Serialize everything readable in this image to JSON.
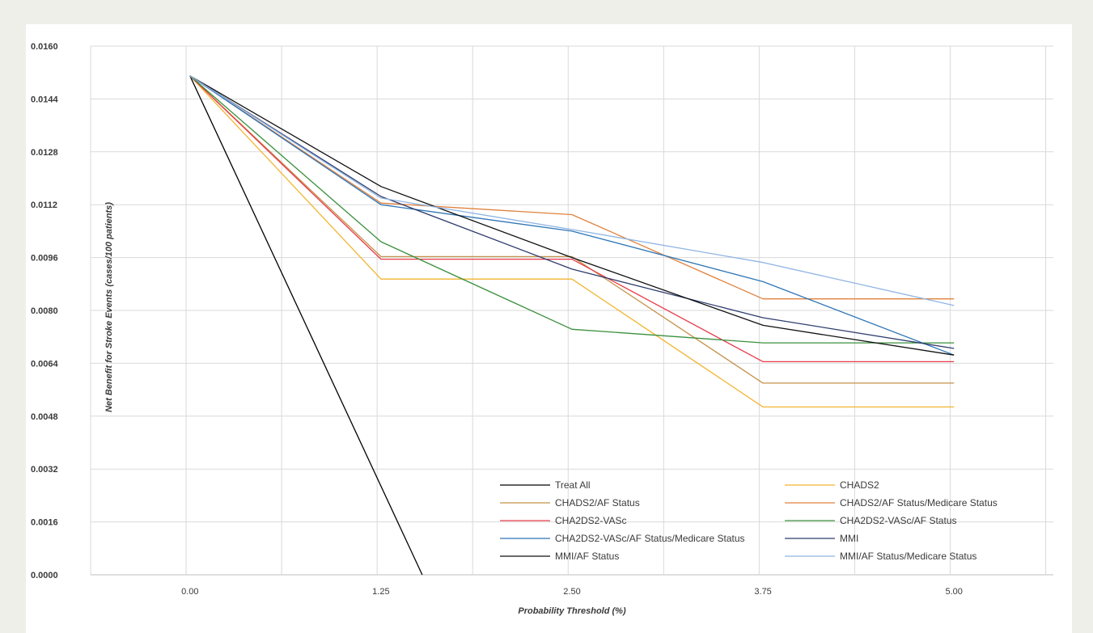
{
  "chart_data": {
    "type": "line",
    "title": "",
    "xlabel": "Probability Threshold (%)",
    "ylabel": "Net Benefit for Stroke Events (cases/100 patients)",
    "x": [
      0,
      1.25,
      2.5,
      3.75,
      5
    ],
    "x_tick_labels": [
      "0.00",
      "1.25",
      "2.50",
      "3.75",
      "5.00"
    ],
    "y_tick_labels": [
      "0.0000",
      "0.0016",
      "0.0032",
      "0.0048",
      "0.0064",
      "0.0080",
      "0.0096",
      "0.0112",
      "0.0128",
      "0.0144",
      "0.0160"
    ],
    "xlim": [
      -0.65,
      5.65
    ],
    "ylim": [
      0,
      0.016
    ],
    "grid": true,
    "legend_position": "bottom-right-inside",
    "series": [
      {
        "name": "Treat All",
        "color": "#000000",
        "x": [
          0,
          1.52
        ],
        "values": [
          0.0151,
          0
        ]
      },
      {
        "name": "CHADS2",
        "color": "#f2b531",
        "values": [
          0.0151,
          0.00895,
          0.00895,
          0.00508,
          0.00508
        ]
      },
      {
        "name": "CHADS2/AF Status",
        "color": "#c4924a",
        "values": [
          0.0151,
          0.00963,
          0.00963,
          0.0058,
          0.0058
        ]
      },
      {
        "name": "CHADS2/AF Status/Medicare Status",
        "color": "#e0813c",
        "values": [
          0.0151,
          0.01125,
          0.0109,
          0.00835,
          0.00835
        ]
      },
      {
        "name": "CHA2DS2-VASc",
        "color": "#e83a49",
        "values": [
          0.0151,
          0.00955,
          0.00955,
          0.00645,
          0.00645
        ]
      },
      {
        "name": "CHA2DS2-VASc/AF Status",
        "color": "#3a8f3c",
        "values": [
          0.0151,
          0.01008,
          0.00743,
          0.00702,
          0.00702
        ]
      },
      {
        "name": "CHA2DS2-VASc/AF Status/Medicare Status",
        "color": "#2e75b6",
        "values": [
          0.0151,
          0.0112,
          0.0104,
          0.00887,
          0.00665
        ]
      },
      {
        "name": "MMI",
        "color": "#2f3d6e",
        "values": [
          0.0151,
          0.01145,
          0.00925,
          0.00778,
          0.00685
        ]
      },
      {
        "name": "MMI/AF Status",
        "color": "#111111",
        "values": [
          0.0151,
          0.01175,
          0.0096,
          0.00755,
          0.00665
        ]
      },
      {
        "name": "MMI/AF Status/Medicare Status",
        "color": "#8fb4e3",
        "values": [
          0.0151,
          0.0114,
          0.01045,
          0.00945,
          0.00815
        ]
      }
    ]
  }
}
